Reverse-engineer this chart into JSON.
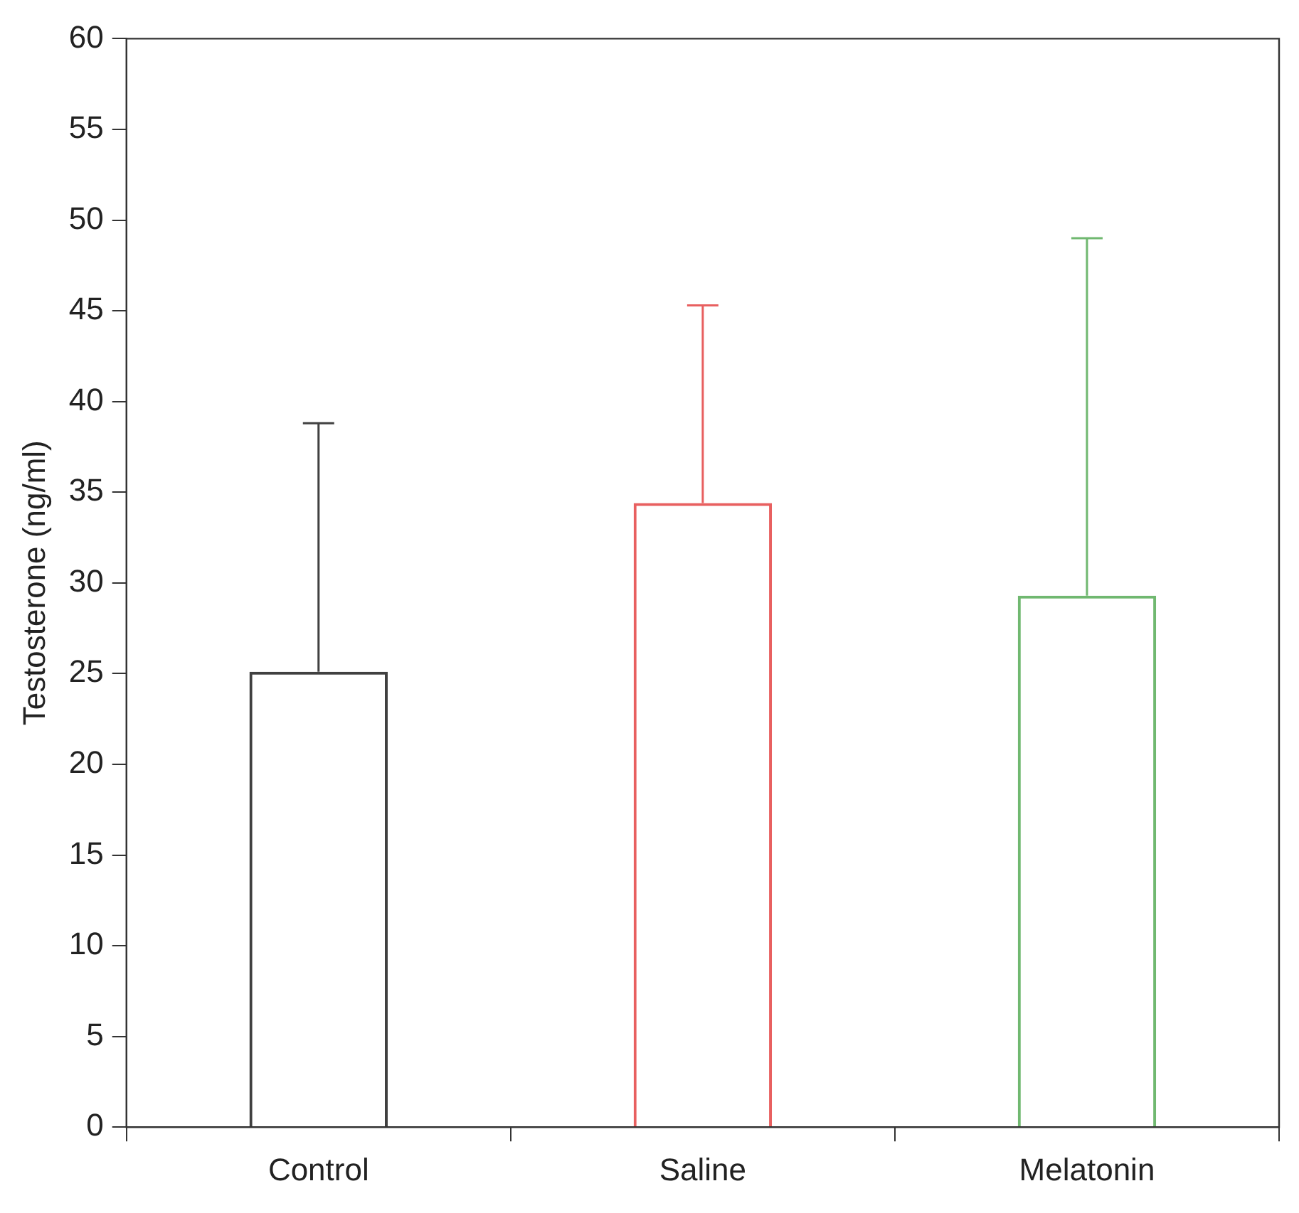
{
  "chart_data": {
    "type": "bar",
    "ylabel": "Testosterone (ng/ml)",
    "categories": [
      "Control",
      "Saline",
      "Melatonin"
    ],
    "values": [
      25.1,
      34.4,
      29.3
    ],
    "colors": [
      "#404040",
      "#e86060",
      "#70b870"
    ],
    "errors": [
      [
        25.1,
        38.8
      ],
      [
        34.4,
        45.3
      ],
      [
        29.3,
        49.0
      ]
    ],
    "ylim": [
      0,
      60
    ],
    "yticks": [
      0,
      5,
      10,
      15,
      20,
      25,
      30,
      35,
      40,
      45,
      50,
      55,
      60
    ],
    "grid": false,
    "legend": false
  }
}
